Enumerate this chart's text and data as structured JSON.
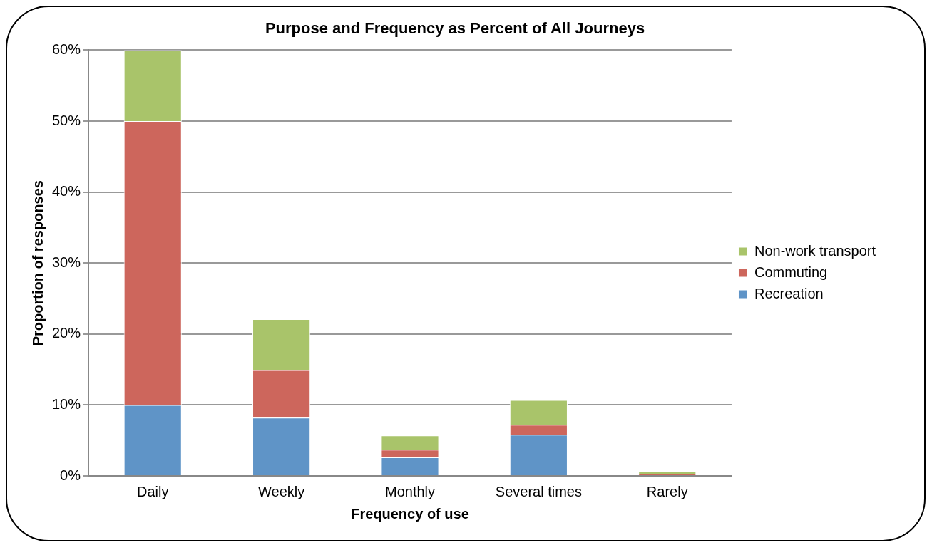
{
  "chart_data": {
    "type": "bar",
    "title": "Purpose and Frequency as Percent of All Journeys",
    "xlabel": "Frequency of use",
    "ylabel": "Proportion of responses",
    "categories": [
      "Daily",
      "Weekly",
      "Monthly",
      "Several times",
      "Rarely"
    ],
    "series": [
      {
        "name": "Recreation",
        "color": "#5f94c7",
        "values": [
          10,
          8.2,
          2.6,
          5.8,
          0.1
        ]
      },
      {
        "name": "Commuting",
        "color": "#cd665c",
        "values": [
          40,
          6.7,
          1.1,
          1.4,
          0.2
        ]
      },
      {
        "name": "Non-work transport",
        "color": "#a9c46a",
        "values": [
          10,
          7.2,
          2.0,
          3.5,
          0.3
        ]
      }
    ],
    "stacked": true,
    "ylim": [
      0,
      60
    ],
    "yticks": [
      {
        "value": 0,
        "label": "0%"
      },
      {
        "value": 10,
        "label": "10%"
      },
      {
        "value": 20,
        "label": "20%"
      },
      {
        "value": 30,
        "label": "30%"
      },
      {
        "value": 40,
        "label": "40%"
      },
      {
        "value": 50,
        "label": "50%"
      },
      {
        "value": 60,
        "label": "60%"
      }
    ],
    "grid": "y",
    "legend": "right"
  }
}
